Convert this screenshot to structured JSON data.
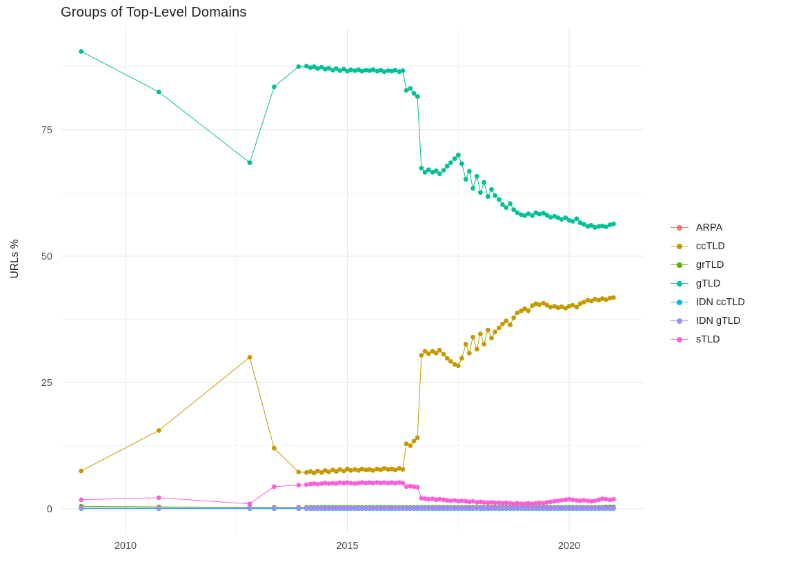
{
  "chart_data": {
    "type": "line+scatter",
    "title": "Groups of Top-Level Domains",
    "background": "#ffffff",
    "grid_major_color": "#e4e4e4",
    "grid_minor_color": "#f2f2f2",
    "legend_position": "right",
    "x_axis": {
      "label": "",
      "ticks": [
        "2010",
        "2015",
        "2020"
      ],
      "values": [
        2010,
        2015,
        2020
      ],
      "minor": [
        2012.5,
        2017.5
      ],
      "range": [
        2008.5,
        2021.7
      ]
    },
    "y_axis": {
      "label": "URLs %",
      "ticks": [
        "0",
        "25",
        "50",
        "75"
      ],
      "values": [
        0,
        25,
        50,
        75
      ],
      "minor": [
        12.5,
        37.5,
        62.5,
        87.5
      ],
      "range": [
        -5,
        95
      ]
    },
    "x": [
      2009.0,
      2010.75,
      2012.8,
      2013.35,
      2013.9,
      2014.08,
      2014.17,
      2014.25,
      2014.33,
      2014.42,
      2014.5,
      2014.58,
      2014.67,
      2014.75,
      2014.83,
      2014.92,
      2015.0,
      2015.08,
      2015.17,
      2015.25,
      2015.33,
      2015.42,
      2015.5,
      2015.58,
      2015.67,
      2015.75,
      2015.83,
      2015.92,
      2016.0,
      2016.08,
      2016.17,
      2016.25,
      2016.33,
      2016.42,
      2016.5,
      2016.58,
      2016.67,
      2016.75,
      2016.83,
      2016.92,
      2017.0,
      2017.08,
      2017.17,
      2017.25,
      2017.33,
      2017.42,
      2017.5,
      2017.58,
      2017.67,
      2017.75,
      2017.83,
      2017.92,
      2018.0,
      2018.08,
      2018.17,
      2018.25,
      2018.33,
      2018.42,
      2018.5,
      2018.58,
      2018.67,
      2018.75,
      2018.83,
      2018.92,
      2019.0,
      2019.08,
      2019.17,
      2019.25,
      2019.33,
      2019.42,
      2019.5,
      2019.58,
      2019.67,
      2019.75,
      2019.83,
      2019.92,
      2020.0,
      2020.08,
      2020.17,
      2020.25,
      2020.33,
      2020.42,
      2020.5,
      2020.58,
      2020.67,
      2020.75,
      2020.83,
      2020.92,
      2021.0
    ],
    "series": [
      {
        "name": "ARPA",
        "color": "#F8766D",
        "y": [
          0.1,
          0.1,
          0.1,
          0.1,
          0.1,
          0.1,
          0.1,
          0.1,
          0.1,
          0.1,
          0.1,
          0.1,
          0.1,
          0.1,
          0.1,
          0.1,
          0.1,
          0.1,
          0.1,
          0.1,
          0.1,
          0.1,
          0.1,
          0.1,
          0.1,
          0.1,
          0.1,
          0.1,
          0.1,
          0.1,
          0.1,
          0.1,
          0.1,
          0.1,
          0.1,
          0.1,
          0.1,
          0.1,
          0.1,
          0.1,
          0.1,
          0.1,
          0.1,
          0.1,
          0.1,
          0.1,
          0.1,
          0.1,
          0.1,
          0.1,
          0.1,
          0.1,
          0.1,
          0.1,
          0.1,
          0.1,
          0.1,
          0.1,
          0.1,
          0.1,
          0.1,
          0.1,
          0.1,
          0.1,
          0.1,
          0.1,
          0.1,
          0.1,
          0.1,
          0.1,
          0.1,
          0.1,
          0.1,
          0.1,
          0.1,
          0.1,
          0.1,
          0.1,
          0.1,
          0.1,
          0.1,
          0.1,
          0.1,
          0.1,
          0.1,
          0.1,
          0.1,
          0.1,
          0.1
        ]
      },
      {
        "name": "ccTLD",
        "color": "#C49A00",
        "y": [
          7.5,
          15.5,
          30.0,
          12.0,
          7.3,
          7.2,
          7.4,
          7.1,
          7.5,
          7.2,
          7.6,
          7.3,
          7.7,
          7.4,
          7.8,
          7.5,
          7.9,
          7.6,
          7.8,
          7.6,
          7.9,
          7.7,
          7.8,
          7.6,
          7.9,
          7.7,
          8.0,
          7.8,
          7.9,
          7.7,
          8.0,
          7.8,
          12.9,
          12.5,
          13.4,
          14.1,
          30.4,
          31.2,
          30.7,
          31.2,
          30.8,
          31.4,
          30.6,
          29.8,
          29.2,
          28.6,
          28.3,
          29.8,
          32.6,
          30.8,
          34.0,
          31.6,
          34.6,
          32.6,
          35.4,
          33.8,
          35.0,
          35.8,
          36.6,
          37.2,
          36.4,
          37.8,
          38.8,
          39.2,
          39.6,
          39.2,
          40.2,
          40.6,
          40.4,
          40.7,
          40.3,
          39.9,
          40.1,
          39.8,
          40.0,
          39.7,
          40.1,
          40.3,
          39.9,
          40.6,
          40.9,
          41.3,
          41.1,
          41.5,
          41.3,
          41.6,
          41.4,
          41.7,
          41.8
        ]
      },
      {
        "name": "grTLD",
        "color": "#53B400",
        "y": [
          0.5,
          0.4,
          0.3,
          0.3,
          0.3,
          0.3,
          0.3,
          0.3,
          0.3,
          0.3,
          0.3,
          0.3,
          0.3,
          0.3,
          0.3,
          0.3,
          0.3,
          0.3,
          0.3,
          0.3,
          0.3,
          0.3,
          0.3,
          0.3,
          0.3,
          0.3,
          0.3,
          0.3,
          0.3,
          0.3,
          0.3,
          0.3,
          0.3,
          0.3,
          0.3,
          0.3,
          0.3,
          0.3,
          0.3,
          0.3,
          0.3,
          0.3,
          0.3,
          0.3,
          0.3,
          0.3,
          0.3,
          0.3,
          0.3,
          0.3,
          0.3,
          0.3,
          0.3,
          0.3,
          0.3,
          0.3,
          0.3,
          0.3,
          0.3,
          0.3,
          0.3,
          0.3,
          0.3,
          0.3,
          0.3,
          0.3,
          0.3,
          0.3,
          0.3,
          0.3,
          0.3,
          0.3,
          0.3,
          0.3,
          0.3,
          0.3,
          0.3,
          0.3,
          0.3,
          0.3,
          0.3,
          0.3,
          0.3,
          0.3,
          0.3,
          0.3,
          0.4,
          0.4,
          0.4
        ]
      },
      {
        "name": "gTLD",
        "color": "#00C094",
        "y": [
          90.5,
          82.5,
          68.5,
          83.5,
          87.5,
          87.6,
          87.3,
          87.5,
          87.1,
          87.4,
          87.0,
          87.2,
          86.8,
          87.1,
          86.7,
          87.0,
          86.6,
          86.9,
          86.7,
          86.9,
          86.6,
          86.8,
          86.7,
          86.9,
          86.6,
          86.8,
          86.5,
          86.7,
          86.6,
          86.8,
          86.5,
          86.7,
          82.8,
          83.2,
          82.2,
          81.6,
          67.4,
          66.6,
          67.1,
          66.6,
          66.9,
          66.3,
          67.0,
          67.8,
          68.5,
          69.3,
          70.0,
          68.3,
          65.2,
          66.8,
          63.4,
          65.8,
          62.6,
          64.6,
          61.8,
          63.2,
          62.0,
          61.2,
          60.2,
          59.6,
          60.4,
          59.2,
          58.6,
          58.2,
          58.0,
          58.4,
          58.0,
          58.6,
          58.3,
          58.5,
          58.1,
          57.7,
          57.9,
          57.6,
          57.3,
          57.6,
          57.1,
          56.9,
          57.4,
          56.6,
          56.3,
          55.9,
          56.1,
          55.7,
          55.9,
          56.0,
          55.8,
          56.2,
          56.4
        ]
      },
      {
        "name": "IDN ccTLD",
        "color": "#00B6EB",
        "y": [
          0.05,
          0.05,
          0.05,
          0.05,
          0.05,
          0.05,
          0.05,
          0.05,
          0.05,
          0.05,
          0.05,
          0.05,
          0.05,
          0.05,
          0.05,
          0.05,
          0.05,
          0.05,
          0.05,
          0.05,
          0.05,
          0.05,
          0.05,
          0.05,
          0.05,
          0.05,
          0.05,
          0.05,
          0.05,
          0.05,
          0.05,
          0.05,
          0.05,
          0.05,
          0.05,
          0.05,
          0.05,
          0.05,
          0.05,
          0.05,
          0.05,
          0.05,
          0.05,
          0.05,
          0.05,
          0.05,
          0.05,
          0.05,
          0.05,
          0.05,
          0.05,
          0.05,
          0.05,
          0.05,
          0.05,
          0.05,
          0.05,
          0.05,
          0.05,
          0.05,
          0.05,
          0.05,
          0.05,
          0.05,
          0.05,
          0.05,
          0.05,
          0.05,
          0.05,
          0.05,
          0.05,
          0.05,
          0.05,
          0.05,
          0.05,
          0.05,
          0.05,
          0.05,
          0.05,
          0.05,
          0.05,
          0.05,
          0.05,
          0.05,
          0.05,
          0.05,
          0.05,
          0.05,
          0.05
        ]
      },
      {
        "name": "IDN gTLD",
        "color": "#A58AFF",
        "y": [
          0.15,
          0.15,
          0.15,
          0.15,
          0.15,
          0.15,
          0.15,
          0.15,
          0.15,
          0.15,
          0.15,
          0.15,
          0.15,
          0.15,
          0.15,
          0.15,
          0.15,
          0.15,
          0.15,
          0.15,
          0.15,
          0.15,
          0.15,
          0.15,
          0.15,
          0.15,
          0.15,
          0.15,
          0.15,
          0.15,
          0.15,
          0.15,
          0.15,
          0.15,
          0.15,
          0.15,
          0.15,
          0.15,
          0.15,
          0.15,
          0.15,
          0.15,
          0.15,
          0.15,
          0.15,
          0.15,
          0.15,
          0.15,
          0.15,
          0.15,
          0.15,
          0.15,
          0.15,
          0.15,
          0.15,
          0.15,
          0.15,
          0.15,
          0.15,
          0.15,
          0.15,
          0.15,
          0.15,
          0.15,
          0.15,
          0.15,
          0.15,
          0.15,
          0.15,
          0.15,
          0.15,
          0.15,
          0.15,
          0.15,
          0.15,
          0.15,
          0.15,
          0.15,
          0.15,
          0.15,
          0.15,
          0.15,
          0.15,
          0.15,
          0.15,
          0.15,
          0.15,
          0.15,
          0.15
        ]
      },
      {
        "name": "sTLD",
        "color": "#FB61D7",
        "y": [
          1.8,
          2.2,
          1.0,
          4.4,
          4.7,
          4.8,
          4.9,
          5.0,
          4.9,
          5.0,
          5.1,
          5.0,
          5.1,
          5.0,
          5.2,
          5.1,
          5.2,
          5.1,
          5.0,
          5.1,
          5.2,
          5.1,
          5.2,
          5.1,
          5.2,
          5.1,
          5.2,
          5.1,
          5.2,
          5.1,
          5.2,
          5.1,
          4.4,
          4.5,
          4.4,
          4.3,
          2.1,
          2.0,
          1.9,
          2.0,
          1.8,
          1.9,
          1.8,
          1.7,
          1.6,
          1.7,
          1.5,
          1.6,
          1.5,
          1.4,
          1.5,
          1.3,
          1.4,
          1.3,
          1.2,
          1.3,
          1.2,
          1.2,
          1.1,
          1.2,
          1.1,
          1.0,
          1.1,
          1.0,
          1.0,
          1.1,
          1.0,
          1.1,
          1.2,
          1.1,
          1.3,
          1.4,
          1.5,
          1.6,
          1.7,
          1.8,
          1.9,
          1.8,
          1.7,
          1.6,
          1.7,
          1.6,
          1.5,
          1.6,
          1.8,
          2.0,
          1.9,
          1.8,
          1.9
        ]
      }
    ]
  }
}
